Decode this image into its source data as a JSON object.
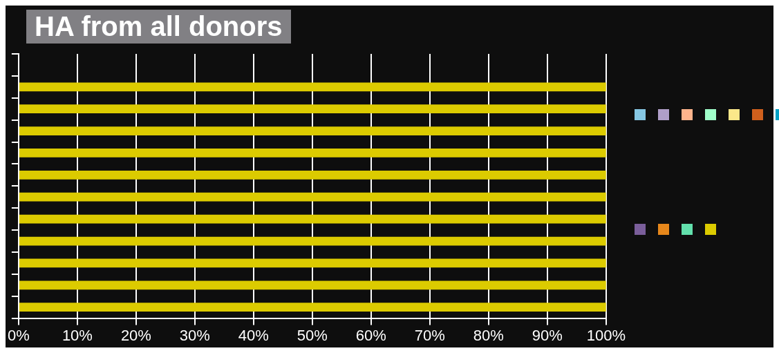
{
  "chart_data": {
    "type": "bar",
    "title": "HA from all donors",
    "orientation": "horizontal",
    "stacked": true,
    "categories": [
      null,
      null,
      null,
      null,
      null,
      null,
      null,
      null,
      null,
      null,
      null,
      null
    ],
    "series": [
      {
        "color": "#86c7e3",
        "values": [
          null,
          0,
          0,
          0,
          0,
          0,
          0,
          0,
          0,
          0,
          0,
          0
        ]
      },
      {
        "color": "#b09fc9",
        "values": [
          null,
          0,
          0,
          0,
          0,
          0,
          0,
          0,
          0,
          0,
          0,
          0
        ]
      },
      {
        "color": "#ffb48c",
        "values": [
          null,
          0,
          0,
          0,
          0,
          0,
          0,
          0,
          0,
          0,
          0,
          0
        ]
      },
      {
        "color": "#a0ffca",
        "values": [
          null,
          0,
          0,
          0,
          0,
          0,
          0,
          0,
          0,
          0,
          0,
          0
        ]
      },
      {
        "color": "#fbe88a",
        "values": [
          null,
          0,
          0,
          0,
          0,
          0,
          0,
          0,
          0,
          0,
          0,
          0
        ]
      },
      {
        "color": "#d0601d",
        "values": [
          null,
          0,
          0,
          0,
          0,
          0,
          0,
          0,
          0,
          0,
          0,
          0
        ]
      },
      {
        "color": "#00a0c4",
        "values": [
          null,
          0,
          0,
          0,
          0,
          0,
          0,
          0,
          0,
          0,
          0,
          0
        ]
      },
      {
        "color": "#7a5e9a",
        "values": [
          null,
          0,
          0,
          0,
          0,
          0,
          0,
          0,
          0,
          0,
          0,
          0
        ]
      },
      {
        "color": "#e6871b",
        "values": [
          null,
          0,
          0,
          0,
          0,
          0,
          0,
          0,
          0,
          0,
          0,
          0
        ]
      },
      {
        "color": "#62e0ac",
        "values": [
          null,
          0,
          0,
          0,
          0,
          0,
          0,
          0,
          0,
          0,
          0,
          0
        ]
      },
      {
        "color": "#dccb00",
        "values": [
          null,
          100,
          100,
          100,
          100,
          100,
          100,
          100,
          100,
          100,
          100,
          100
        ]
      }
    ],
    "xlim": [
      0,
      100
    ],
    "xticks": [
      {
        "value": 0,
        "label": "0%"
      },
      {
        "value": 10,
        "label": "10%"
      },
      {
        "value": 20,
        "label": "20%"
      },
      {
        "value": 30,
        "label": "30%"
      },
      {
        "value": 40,
        "label": "40%"
      },
      {
        "value": 50,
        "label": "50%"
      },
      {
        "value": 60,
        "label": "60%"
      },
      {
        "value": 70,
        "label": "70%"
      },
      {
        "value": 80,
        "label": "80%"
      },
      {
        "value": 90,
        "label": "90%"
      },
      {
        "value": 100,
        "label": "100%"
      }
    ],
    "grid": "x",
    "tick_labels": "x"
  }
}
